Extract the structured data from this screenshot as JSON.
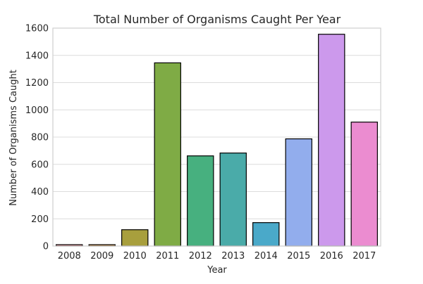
{
  "chart_data": {
    "type": "bar",
    "title": "Total Number of Organisms Caught Per Year",
    "xlabel": "Year",
    "ylabel": "Number of Organisms Caught",
    "categories": [
      "2008",
      "2009",
      "2010",
      "2011",
      "2012",
      "2013",
      "2014",
      "2015",
      "2016",
      "2017"
    ],
    "values": [
      10,
      10,
      120,
      1345,
      662,
      683,
      172,
      787,
      1555,
      910
    ],
    "ylim": [
      0,
      1600
    ],
    "yticks": [
      0,
      200,
      400,
      600,
      800,
      1000,
      1200,
      1400,
      1600
    ],
    "grid": true,
    "colors": [
      "#e8838a",
      "#ce8a39",
      "#a89f3d",
      "#7fab45",
      "#47b07f",
      "#4aaba9",
      "#4aa9c9",
      "#92aded",
      "#cc99ec",
      "#eb8cd0"
    ]
  }
}
